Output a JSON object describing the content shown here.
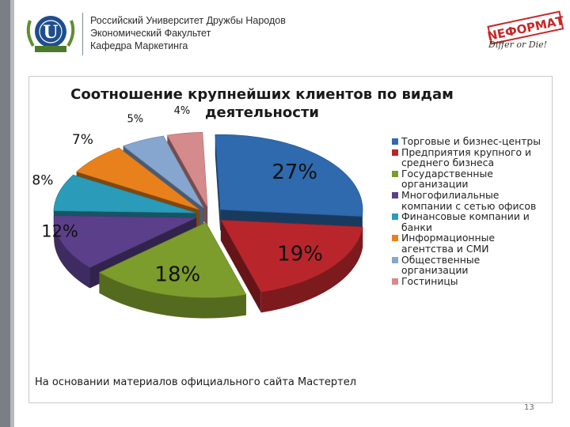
{
  "header": {
    "university": "Российский Университет Дружбы Народов",
    "faculty": "Экономический Факультет",
    "department": "Кафедра Маркетинга",
    "brand": "NEФОРМАТ",
    "slogan": "Differ or Die!"
  },
  "chart_data": {
    "type": "pie",
    "title": "Соотношение крупнейших клиентов по видам деятельности",
    "categories": [
      "Торговые и бизнес-центры",
      "Предприятия крупного и среднего бизнеса",
      "Государственные организации",
      "Многофилиальные компании с сетью офисов",
      "Финансовые компании и банки",
      "Информационные агентства и СМИ",
      "Общественные организации",
      "Гостиницы"
    ],
    "values": [
      27,
      19,
      18,
      12,
      8,
      7,
      5,
      4
    ],
    "labels": [
      "27%",
      "19%",
      "18%",
      "12%",
      "8%",
      "7%",
      "5%",
      "4%"
    ],
    "colors": [
      "#2e6aad",
      "#b8262b",
      "#7c9c2c",
      "#5b3f8b",
      "#2a9bb8",
      "#e8811c",
      "#86a6cf",
      "#d58a8c"
    ],
    "legend_position": "right"
  },
  "legend": [
    "Торговые и бизнес-центры",
    "Предприятия крупного и среднего бизнеса",
    "Государственные организации",
    "Многофилиальные компании с сетью офисов",
    "Финансовые компании и банки",
    "Информационные агентства и СМИ",
    "Общественные организации",
    "Гостиницы"
  ],
  "source_note": "На основании материалов официального сайта Мастертел",
  "page_number": "13"
}
